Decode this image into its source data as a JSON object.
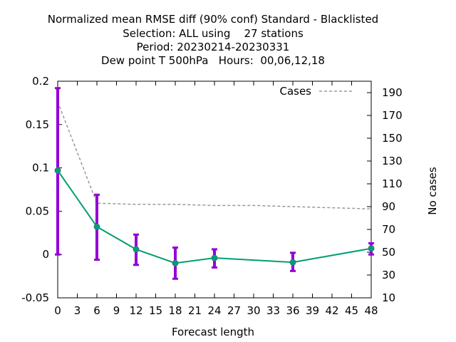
{
  "chart_data": {
    "type": "line",
    "title_lines": [
      "Normalized mean RMSE diff (90% conf) Standard - Blacklisted",
      "Selection: ALL using    27 stations",
      "Period: 20230214-20230331",
      "Dew point T 500hPa   Hours:  00,06,12,18"
    ],
    "xlabel": "Forecast length",
    "ylabel_right": "No cases",
    "xlim": [
      0,
      48
    ],
    "ylim_left": [
      -0.05,
      0.2
    ],
    "ylim_right": [
      10,
      200
    ],
    "x_ticks": [
      "0",
      "3",
      "6",
      "9",
      "12",
      "15",
      "18",
      "21",
      "24",
      "27",
      "30",
      "33",
      "36",
      "39",
      "42",
      "45",
      "48"
    ],
    "y_left_ticks": [
      "-0.05",
      "0",
      "0.05",
      "0.1",
      "0.15",
      "0.2"
    ],
    "y_right_ticks": [
      "10",
      "30",
      "50",
      "70",
      "90",
      "110",
      "130",
      "150",
      "170",
      "190"
    ],
    "legend": {
      "label": "Cases",
      "position": "top-right"
    },
    "series": [
      {
        "axis": "left",
        "color": "#009e73",
        "errorbar_color": "#9400d3",
        "x": [
          0,
          6,
          12,
          18,
          24,
          36,
          48
        ],
        "values": [
          0.097,
          0.032,
          0.006,
          -0.01,
          -0.004,
          -0.009,
          0.007
        ],
        "err_low": [
          0.0,
          -0.006,
          -0.012,
          -0.028,
          -0.015,
          -0.019,
          0.0
        ],
        "err_high": [
          0.192,
          0.069,
          0.023,
          0.008,
          0.006,
          0.002,
          0.013
        ]
      },
      {
        "name": "Cases",
        "axis": "right",
        "color": "#999999",
        "dashed": true,
        "x": [
          0,
          6,
          12,
          18,
          24,
          30,
          36,
          42,
          48
        ],
        "values": [
          182,
          93,
          92,
          92,
          91,
          91,
          90,
          89,
          88
        ]
      }
    ]
  }
}
